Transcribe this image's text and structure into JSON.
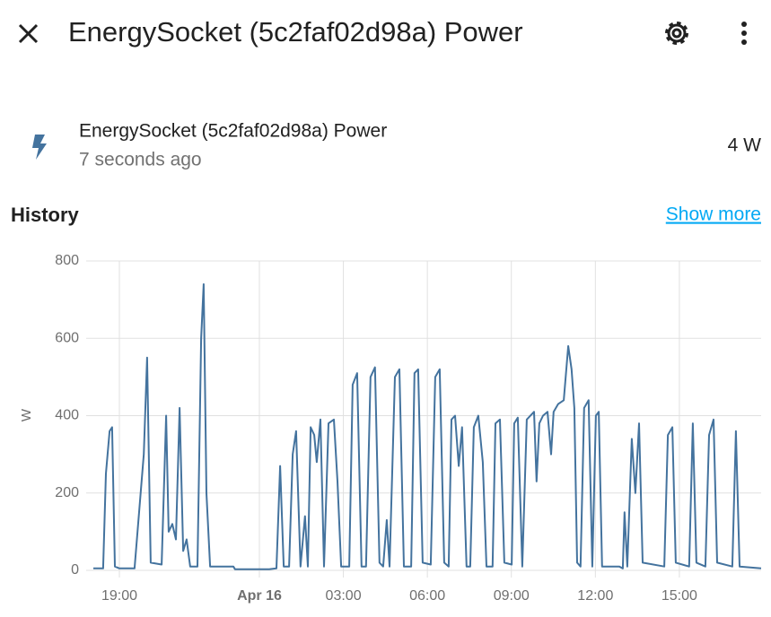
{
  "header": {
    "title": "EnergySocket (5c2faf02d98a) Power"
  },
  "entity": {
    "name": "EnergySocket (5c2faf02d98a) Power",
    "last_changed": "7 seconds ago",
    "state": "4 W"
  },
  "history": {
    "title": "History",
    "link": "Show more"
  },
  "chart_data": {
    "type": "line",
    "y_label": "W",
    "x": [
      18.07,
      18.42,
      18.52,
      18.65,
      18.74,
      18.84,
      19.0,
      19.54,
      19.87,
      19.99,
      20.12,
      20.51,
      20.67,
      20.76,
      20.89,
      21.02,
      21.15,
      21.28,
      21.4,
      21.53,
      21.79,
      21.92,
      22.01,
      22.11,
      22.24,
      23.07,
      23.13,
      24.35,
      24.61,
      24.74,
      24.87,
      25.06,
      25.19,
      25.31,
      25.47,
      25.63,
      25.73,
      25.83,
      25.96,
      26.05,
      26.18,
      26.31,
      26.47,
      26.66,
      26.79,
      26.92,
      27.21,
      27.33,
      27.49,
      27.65,
      27.81,
      27.97,
      28.13,
      28.29,
      28.42,
      28.55,
      28.65,
      28.84,
      29.0,
      29.16,
      29.42,
      29.54,
      29.67,
      29.83,
      30.12,
      30.28,
      30.44,
      30.6,
      30.76,
      30.86,
      30.99,
      31.12,
      31.24,
      31.4,
      31.53,
      31.66,
      31.82,
      31.98,
      32.11,
      32.33,
      32.43,
      32.59,
      32.75,
      33.01,
      33.1,
      33.23,
      33.39,
      33.55,
      33.81,
      33.9,
      34.0,
      34.13,
      34.29,
      34.42,
      34.51,
      34.67,
      34.87,
      35.03,
      35.15,
      35.25,
      35.35,
      35.47,
      35.6,
      35.76,
      35.89,
      36.02,
      36.12,
      36.24,
      36.85,
      36.98,
      37.04,
      37.14,
      37.3,
      37.43,
      37.56,
      37.69,
      38.46,
      38.59,
      38.75,
      38.87,
      39.35,
      39.48,
      39.61,
      39.93,
      40.06,
      40.22,
      40.35,
      40.89,
      41.02,
      41.15,
      41.92
    ],
    "series": [
      {
        "color": "#44739e",
        "values": [
          5,
          5,
          250,
          360,
          370,
          10,
          5,
          5,
          300,
          550,
          20,
          15,
          400,
          100,
          120,
          80,
          420,
          50,
          80,
          10,
          10,
          600,
          740,
          200,
          10,
          10,
          3,
          3,
          5,
          270,
          10,
          10,
          300,
          360,
          10,
          140,
          10,
          370,
          350,
          280,
          390,
          10,
          380,
          390,
          230,
          10,
          10,
          480,
          510,
          10,
          10,
          500,
          525,
          20,
          10,
          130,
          10,
          500,
          520,
          10,
          10,
          510,
          520,
          20,
          15,
          500,
          520,
          20,
          10,
          390,
          400,
          270,
          370,
          10,
          10,
          370,
          400,
          280,
          10,
          10,
          380,
          390,
          20,
          15,
          380,
          395,
          10,
          390,
          410,
          230,
          380,
          400,
          410,
          300,
          410,
          430,
          440,
          580,
          520,
          420,
          20,
          10,
          420,
          440,
          10,
          400,
          410,
          10,
          10,
          5,
          150,
          10,
          340,
          200,
          380,
          20,
          10,
          350,
          370,
          20,
          10,
          380,
          20,
          10,
          350,
          390,
          20,
          10,
          360,
          10,
          5
        ]
      }
    ],
    "xlim": [
      18.07,
      41.92
    ],
    "ylim": [
      0,
      800
    ],
    "yticks": [
      0,
      200,
      400,
      600,
      800
    ],
    "xticks": [
      {
        "value": 19,
        "label": "19:00"
      },
      {
        "value": 24,
        "label": "Apr 16"
      },
      {
        "value": 27,
        "label": "03:00"
      },
      {
        "value": 30,
        "label": "06:00"
      },
      {
        "value": 33,
        "label": "09:00"
      },
      {
        "value": 36,
        "label": "12:00"
      },
      {
        "value": 39,
        "label": "15:00"
      }
    ],
    "grid": true
  }
}
